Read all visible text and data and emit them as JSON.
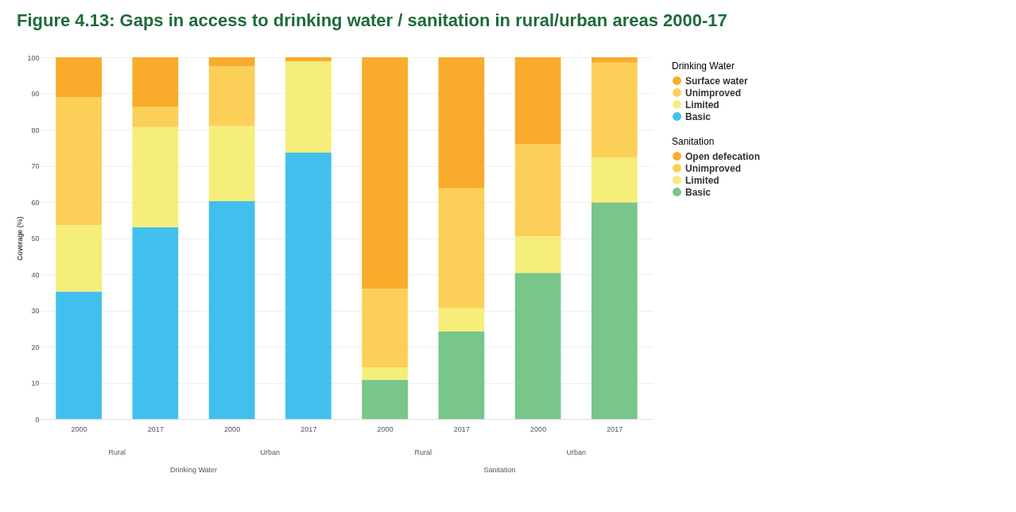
{
  "chart_data": {
    "type": "bar",
    "stacked": true,
    "title": "Figure 4.13: Gaps in access to drinking water / sanitation in rural/urban areas 2000-17",
    "ylabel": "Coverage (%)",
    "legend_title": [
      "Drinking Water",
      "Sanitation"
    ],
    "categories": [
      "2000",
      "2017",
      "2000",
      "2017",
      "2000",
      "2017",
      "2000",
      "2017"
    ],
    "annotations": [
      "Rural",
      "Urban",
      "Rural",
      "Urban",
      "Drinking Water",
      "Sanitation"
    ],
    "series": [
      {
        "name": "Basic",
        "color": "#41c0ee",
        "values": [
          35.2,
          53.0,
          60.2,
          73.6,
          null,
          null,
          null,
          null
        ]
      },
      {
        "name": "Limited",
        "color": "#f5ee7a",
        "values": [
          18.4,
          27.7,
          20.8,
          25.3,
          null,
          null,
          null,
          null
        ]
      },
      {
        "name": "Unimproved",
        "color": "#fccf58",
        "values": [
          35.4,
          5.7,
          16.5,
          0,
          null,
          null,
          null,
          null
        ]
      },
      {
        "name": "Surface water",
        "color": "#f9ab2c",
        "values": [
          11.0,
          13.6,
          2.5,
          1.1,
          null,
          null,
          null,
          null
        ]
      },
      {
        "name": "Basic",
        "color": "#78c68a",
        "values": [
          null,
          null,
          null,
          null,
          10.8,
          24.2,
          40.4,
          59.9
        ]
      },
      {
        "name": "Limited",
        "color": "#f5ee7a",
        "values": [
          null,
          null,
          null,
          null,
          3.5,
          6.4,
          10.1,
          12.3
        ]
      },
      {
        "name": "Unimproved",
        "color": "#fccf58",
        "values": [
          null,
          null,
          null,
          null,
          21.7,
          33.2,
          25.5,
          26.3
        ]
      },
      {
        "name": "Open defecation",
        "color": "#f9ab2c",
        "values": [
          null,
          null,
          null,
          null,
          64.0,
          36.2,
          24.0,
          1.5
        ]
      }
    ],
    "ylim": [
      0,
      100
    ],
    "yticks": [
      0,
      10,
      20,
      30,
      40,
      50,
      60,
      70,
      80,
      90,
      100
    ],
    "grid": "y",
    "legend": "right"
  }
}
